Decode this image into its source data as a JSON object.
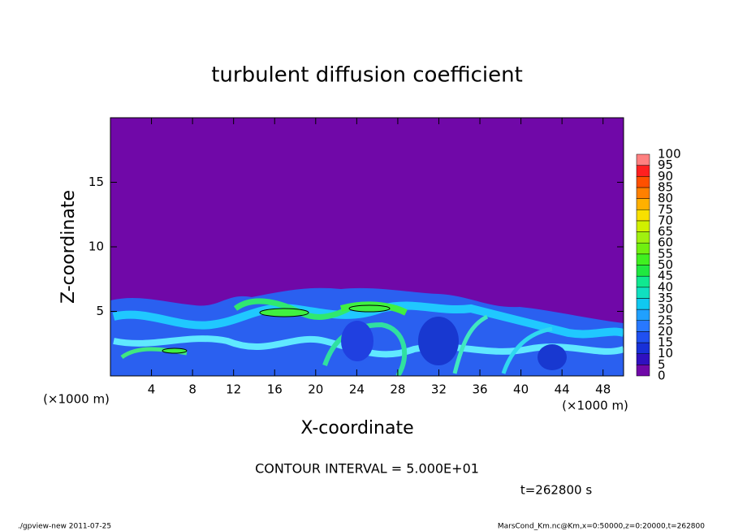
{
  "chart_data": {
    "type": "contour",
    "title": "turbulent diffusion coefficient",
    "xlabel": "X-coordinate",
    "ylabel": "Z-coordinate",
    "xunit": "(×1000 m)",
    "yunit": "(×1000 m)",
    "xlim": [
      0,
      50
    ],
    "xticks": [
      4,
      8,
      12,
      16,
      20,
      24,
      28,
      32,
      36,
      40,
      44,
      48
    ],
    "ylim": [
      0,
      20
    ],
    "yticks": [
      5,
      10,
      15
    ],
    "colorbar": {
      "levels": [
        0,
        5,
        10,
        15,
        20,
        25,
        30,
        35,
        40,
        45,
        50,
        55,
        60,
        65,
        70,
        75,
        80,
        85,
        90,
        95,
        100
      ],
      "colors": [
        "#7008a8",
        "#3010c0",
        "#1830d8",
        "#2050f0",
        "#2878ff",
        "#20a0ff",
        "#10c8f0",
        "#10e0c0",
        "#10e890",
        "#20e840",
        "#40f020",
        "#70f010",
        "#a0f010",
        "#d0f000",
        "#f8e000",
        "#ffb000",
        "#ff8000",
        "#ff5000",
        "#ff2020",
        "#ff8080"
      ]
    },
    "annotations": [
      "CONTOUR INTERVAL = 5.000E+01",
      "t=262800 s"
    ],
    "footer_left": "./gpview-new   2011-07-25",
    "footer_right": "MarsCond_Km.nc@Km,x=0:50000,z=0:20000,t=262800"
  }
}
